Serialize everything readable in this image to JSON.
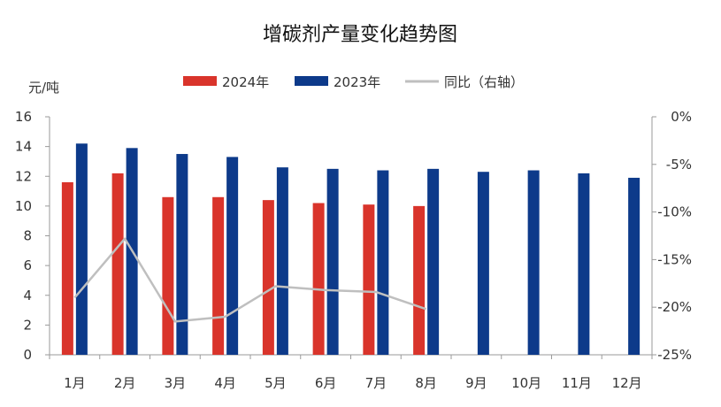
{
  "chart_data": {
    "type": "bar",
    "title": "增碳剂产量变化趋势图",
    "ylabel": "元/吨",
    "categories": [
      "1月",
      "2月",
      "3月",
      "4月",
      "5月",
      "6月",
      "7月",
      "8月",
      "9月",
      "10月",
      "11月",
      "12月"
    ],
    "series": [
      {
        "name": "2024年",
        "type": "bar",
        "axis": "left",
        "color": "#d9342b",
        "values": [
          11.6,
          12.2,
          10.6,
          10.6,
          10.4,
          10.2,
          10.1,
          10.0,
          null,
          null,
          null,
          null
        ]
      },
      {
        "name": "2023年",
        "type": "bar",
        "axis": "left",
        "color": "#0d3a8a",
        "values": [
          14.2,
          13.9,
          13.5,
          13.3,
          12.6,
          12.5,
          12.4,
          12.5,
          12.3,
          12.4,
          12.2,
          11.9
        ]
      },
      {
        "name": "同比（右轴）",
        "type": "line",
        "axis": "right",
        "color": "#bfbfbf",
        "values": [
          -19.0,
          -12.8,
          -21.5,
          -21.0,
          -17.8,
          -18.2,
          -18.4,
          -20.2,
          null,
          null,
          null,
          null
        ]
      }
    ],
    "ylim": [
      0,
      16
    ],
    "yticks": [
      "0",
      "2",
      "4",
      "6",
      "8",
      "10",
      "12",
      "14",
      "16"
    ],
    "y2lim": [
      -25,
      0
    ],
    "y2ticks": [
      "0%",
      "-5%",
      "-10%",
      "-15%",
      "-20%",
      "-25%"
    ]
  }
}
